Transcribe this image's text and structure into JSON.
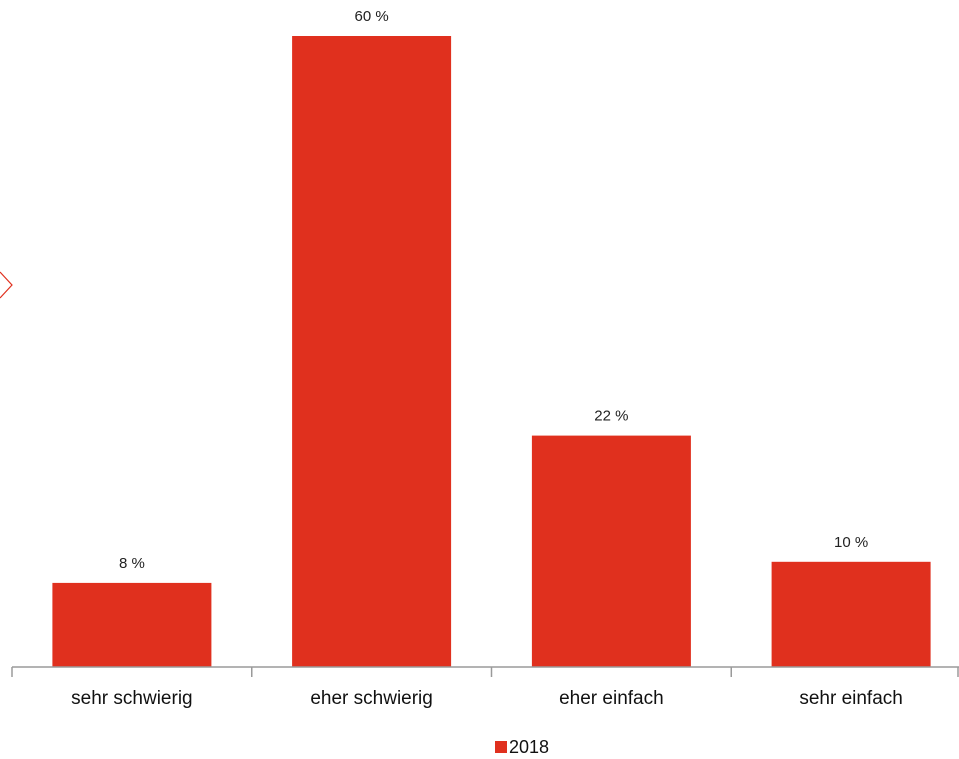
{
  "chart_data": {
    "type": "bar",
    "categories": [
      "sehr schwierig",
      "eher schwierig",
      "eher einfach",
      "sehr einfach"
    ],
    "series": [
      {
        "name": "2018",
        "values": [
          8,
          60,
          22,
          10
        ],
        "labels": [
          "8 %",
          "60 %",
          "22 %",
          "10 %"
        ],
        "color": "#e0301e"
      }
    ],
    "ylim": [
      0,
      60
    ],
    "grid": false,
    "legend": "bottom"
  }
}
